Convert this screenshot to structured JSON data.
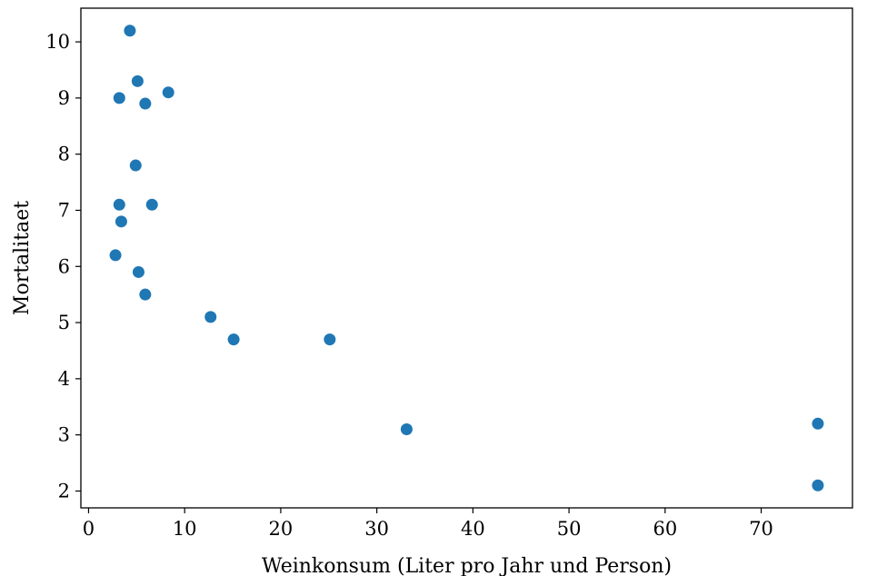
{
  "chart_data": {
    "type": "scatter",
    "title": "",
    "xlabel": "Weinkonsum (Liter pro Jahr und Person)",
    "ylabel": "Mortalitaet",
    "xlim": [
      -0.8,
      79.5
    ],
    "ylim": [
      1.7,
      10.6
    ],
    "xticks": [
      0,
      10,
      20,
      30,
      40,
      50,
      60,
      70
    ],
    "yticks": [
      2,
      3,
      4,
      5,
      6,
      7,
      8,
      9,
      10
    ],
    "grid": false,
    "marker_color": "#1f77b4",
    "series": [
      {
        "points": [
          {
            "x": 4.3,
            "y": 10.2
          },
          {
            "x": 5.1,
            "y": 9.3
          },
          {
            "x": 8.3,
            "y": 9.1
          },
          {
            "x": 3.2,
            "y": 9.0
          },
          {
            "x": 5.9,
            "y": 8.9
          },
          {
            "x": 4.9,
            "y": 7.8
          },
          {
            "x": 3.2,
            "y": 7.1
          },
          {
            "x": 6.6,
            "y": 7.1
          },
          {
            "x": 3.4,
            "y": 6.8
          },
          {
            "x": 2.8,
            "y": 6.2
          },
          {
            "x": 5.2,
            "y": 5.9
          },
          {
            "x": 5.9,
            "y": 5.5
          },
          {
            "x": 12.7,
            "y": 5.1
          },
          {
            "x": 15.1,
            "y": 4.7
          },
          {
            "x": 25.1,
            "y": 4.7
          },
          {
            "x": 33.1,
            "y": 3.1
          },
          {
            "x": 75.9,
            "y": 3.2
          },
          {
            "x": 75.9,
            "y": 2.1
          }
        ]
      }
    ]
  }
}
